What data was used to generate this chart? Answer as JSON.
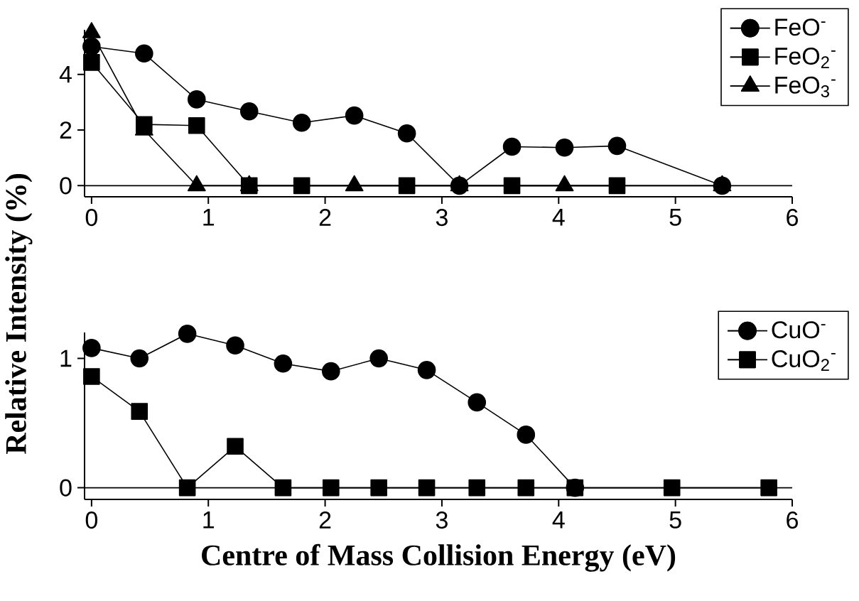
{
  "chart_data": [
    {
      "type": "line",
      "ylabel": "Relative Intensity (%)",
      "xlim": [
        -0.06,
        6
      ],
      "ylim": [
        -0.4,
        5.6
      ],
      "xticks": [
        0,
        1,
        2,
        3,
        4,
        5,
        6
      ],
      "yticks": [
        0,
        2,
        4
      ],
      "legend": "top right",
      "grid": false,
      "ref_lines": [
        {
          "axis": "y",
          "value": 0
        }
      ],
      "series": [
        {
          "name": "FeO$^{-}$",
          "color": "#000000",
          "marker": "circle",
          "x": [
            0,
            0.45,
            0.9,
            1.35,
            1.8,
            2.25,
            2.7,
            3.15,
            3.6,
            4.05,
            4.5,
            5.4
          ],
          "values": [
            5.0,
            4.75,
            3.1,
            2.67,
            2.26,
            2.52,
            1.88,
            0,
            1.4,
            1.37,
            1.43,
            0
          ]
        },
        {
          "name": "FeO$_{2}$$^{-}$",
          "color": "#000000",
          "marker": "square",
          "x": [
            0,
            0.45,
            0.9,
            1.35,
            1.8,
            2.7,
            3.6,
            4.5
          ],
          "values": [
            4.43,
            2.2,
            2.16,
            0,
            0,
            0,
            0,
            0
          ]
        },
        {
          "name": "FeO$_{3}$$^{-}$",
          "color": "#000000",
          "marker": "triangle",
          "x": [
            0,
            0.45,
            0.9,
            1.35,
            2.25,
            3.15,
            4.05,
            5.4
          ],
          "values": [
            5.5,
            2.0,
            0,
            0,
            0,
            0,
            0,
            0
          ]
        }
      ]
    },
    {
      "type": "line",
      "xlabel": "Centre of Mass Collision Energy (eV)",
      "xlim": [
        -0.06,
        6
      ],
      "ylim": [
        -0.09,
        1.2
      ],
      "xticks": [
        0,
        1,
        2,
        3,
        4,
        5,
        6
      ],
      "yticks": [
        0,
        1
      ],
      "legend": "top right",
      "grid": false,
      "ref_lines": [
        {
          "axis": "y",
          "value": 0
        }
      ],
      "series": [
        {
          "name": "CuO$^{-}$",
          "color": "#000000",
          "marker": "circle",
          "x": [
            0,
            0.41,
            0.82,
            1.23,
            1.64,
            2.05,
            2.46,
            2.87,
            3.3,
            3.72,
            4.14
          ],
          "values": [
            1.08,
            1.0,
            1.19,
            1.1,
            0.96,
            0.9,
            1.0,
            0.91,
            0.66,
            0.41,
            0
          ]
        },
        {
          "name": "CuO$_{2}$$^{-}$",
          "color": "#000000",
          "marker": "square",
          "x": [
            0,
            0.41,
            0.82,
            1.23,
            1.64,
            2.05,
            2.46,
            2.87,
            3.3,
            3.72,
            4.14,
            4.97,
            5.8
          ],
          "values": [
            0.86,
            0.59,
            0,
            0.32,
            0,
            0,
            0,
            0,
            0,
            0,
            0,
            0,
            0
          ]
        }
      ]
    }
  ]
}
